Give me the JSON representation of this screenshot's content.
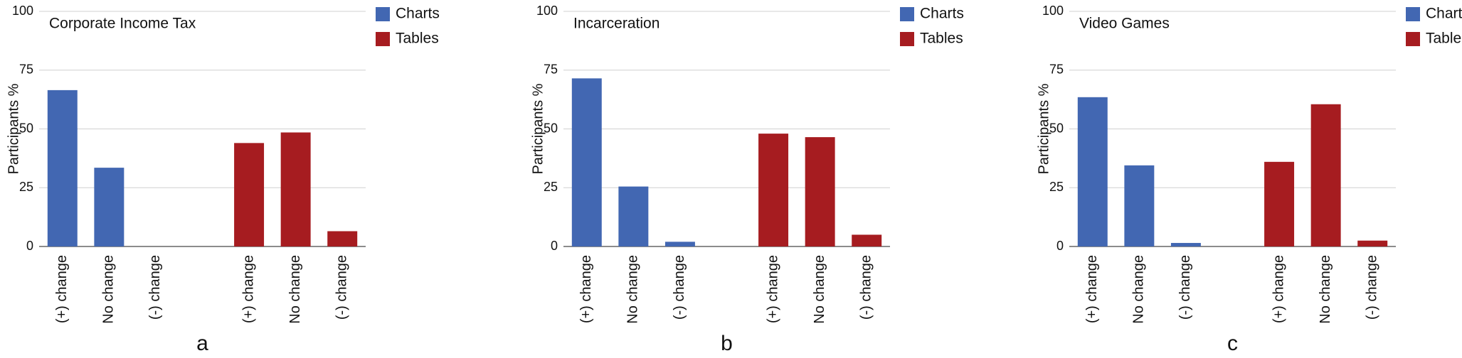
{
  "chart_data": [
    {
      "type": "bar",
      "title": "Corporate Income Tax",
      "label": "a",
      "ylabel": "Participants %",
      "categories": [
        "(+) change",
        "No change",
        "(-) change",
        null,
        "(+) change",
        "No change",
        "(-) change"
      ],
      "series": [
        {
          "name": "Charts",
          "color": "#4267b2",
          "values": [
            66.5,
            33.5,
            0,
            null,
            null,
            null,
            null
          ]
        },
        {
          "name": "Tables",
          "color": "#a61c20",
          "values": [
            null,
            null,
            null,
            null,
            44,
            48.5,
            6.5
          ]
        }
      ],
      "ylim": [
        0,
        100
      ],
      "yticks": [
        0,
        25,
        50,
        75,
        100
      ],
      "grid": true
    },
    {
      "type": "bar",
      "title": "Incarceration",
      "label": "b",
      "ylabel": "Participants %",
      "categories": [
        "(+) change",
        "No change",
        "(-) change",
        null,
        "(+) change",
        "No change",
        "(-) change"
      ],
      "series": [
        {
          "name": "Charts",
          "color": "#4267b2",
          "values": [
            71.5,
            25.5,
            2,
            null,
            null,
            null,
            null
          ]
        },
        {
          "name": "Tables",
          "color": "#a61c20",
          "values": [
            null,
            null,
            null,
            null,
            48,
            46.5,
            5
          ]
        }
      ],
      "ylim": [
        0,
        100
      ],
      "yticks": [
        0,
        25,
        50,
        75,
        100
      ],
      "grid": true
    },
    {
      "type": "bar",
      "title": "Video Games",
      "label": "c",
      "ylabel": "Participants %",
      "categories": [
        "(+) change",
        "No change",
        "(-) change",
        null,
        "(+) change",
        "No change",
        "(-) change"
      ],
      "series": [
        {
          "name": "Charts",
          "color": "#4267b2",
          "values": [
            63.5,
            34.5,
            1.5,
            null,
            null,
            null,
            null
          ]
        },
        {
          "name": "Tables",
          "color": "#a61c20",
          "values": [
            null,
            null,
            null,
            null,
            36,
            60.5,
            2.5
          ]
        }
      ],
      "ylim": [
        0,
        100
      ],
      "yticks": [
        0,
        25,
        50,
        75,
        100
      ],
      "grid": true
    }
  ]
}
